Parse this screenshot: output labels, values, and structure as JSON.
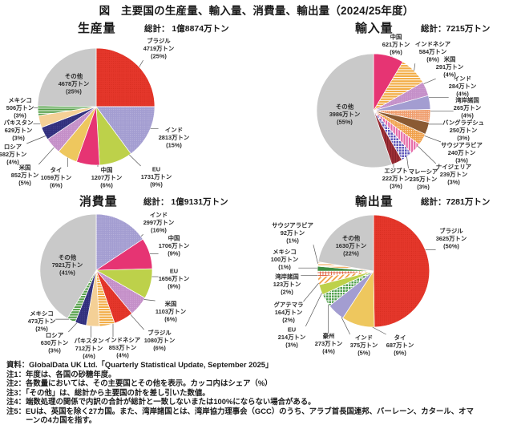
{
  "figure_title": "図　主要国の生産量、輸入量、消費量、輸出量（2024/25年度）",
  "chart_data": [
    {
      "type": "pie",
      "id": "production",
      "title": "生産量",
      "total_label": "総計： 1億8874万トン",
      "unit": "万トン",
      "total_value": 18874,
      "slices": [
        {
          "label": "ブラジル",
          "value": 4719,
          "value_label": "4719万トン",
          "share_label": "(25%)",
          "fill": {
            "pattern": "dots",
            "bg": "#e5372b",
            "fg": "#d32a1c"
          }
        },
        {
          "label": "インド",
          "value": 2813,
          "value_label": "2813万トン",
          "share_label": "(15%)",
          "fill": {
            "pattern": "dots",
            "bg": "#a39dd1",
            "fg": "#bfb9e0"
          }
        },
        {
          "label": "EU",
          "value": 1731,
          "value_label": "1731万トン",
          "share_label": "(9%)",
          "fill": {
            "pattern": "solid",
            "bg": "#bdd14a"
          }
        },
        {
          "label": "中国",
          "value": 1207,
          "value_label": "1207万トン",
          "share_label": "(6%)",
          "fill": {
            "pattern": "solid",
            "bg": "#e63473"
          }
        },
        {
          "label": "タイ",
          "value": 1059,
          "value_label": "1059万トン",
          "share_label": "(6%)",
          "fill": {
            "pattern": "solid",
            "bg": "#eec75e"
          }
        },
        {
          "label": "米国",
          "value": 852,
          "value_label": "852万トン",
          "share_label": "(5%)",
          "fill": {
            "pattern": "dots",
            "bg": "#c48fc8",
            "fg": "#d9aedb"
          }
        },
        {
          "label": "ロシア",
          "value": 682,
          "value_label": "682万トン",
          "share_label": "(4%)",
          "fill": {
            "pattern": "dots",
            "bg": "#312f7c",
            "fg": "#504e9d"
          }
        },
        {
          "label": "パキスタン",
          "value": 629,
          "value_label": "629万トン",
          "share_label": "(3%)",
          "fill": {
            "pattern": "solid",
            "bg": "#f4d096"
          }
        },
        {
          "label": "メキシコ",
          "value": 506,
          "value_label": "506万トン",
          "share_label": "(3%)",
          "fill": {
            "pattern": "hstripes",
            "bg": "#54a049",
            "fg": "#ffffff"
          }
        },
        {
          "label": "その他",
          "value": 4678,
          "value_label": "4678万トン",
          "share_label": "(25%)",
          "fill": {
            "pattern": "solid",
            "bg": "#c9c9c9"
          },
          "inside": true
        }
      ]
    },
    {
      "type": "pie",
      "id": "imports",
      "title": "輸入量",
      "total_label": "総計：7215万トン",
      "unit": "万トン",
      "total_value": 7215,
      "slices": [
        {
          "label": "中国",
          "value": 621,
          "value_label": "621万トン",
          "share_label": "(9%)",
          "fill": {
            "pattern": "solid",
            "bg": "#e63473"
          }
        },
        {
          "label": "インドネシア",
          "value": 584,
          "value_label": "584万トン",
          "share_label": "(8%)",
          "fill": {
            "pattern": "hstripes",
            "bg": "#f2ab43",
            "fg": "#ffffff"
          }
        },
        {
          "label": "米国",
          "value": 291,
          "value_label": "291万トン",
          "share_label": "(4%)",
          "fill": {
            "pattern": "dots",
            "bg": "#c48fc8",
            "fg": "#d9aedb"
          }
        },
        {
          "label": "インド",
          "value": 284,
          "value_label": "284万トン",
          "share_label": "(4%)",
          "fill": {
            "pattern": "solid",
            "bg": "#a39dd1"
          }
        },
        {
          "label": "湾岸諸国",
          "value": 265,
          "value_label": "265万トン",
          "share_label": "(4%)",
          "fill": {
            "pattern": "dots",
            "bg": "#ef9d6d",
            "fg": "#ffffff"
          }
        },
        {
          "label": "バングラデシュ",
          "value": 250,
          "value_label": "250万トン",
          "share_label": "(3%)",
          "fill": {
            "pattern": "solid",
            "bg": "#8a5a33"
          }
        },
        {
          "label": "サウジアラビア",
          "value": 240,
          "value_label": "240万トン",
          "share_label": "(3%)",
          "fill": {
            "pattern": "dots",
            "bg": "#f0a04a",
            "fg": "#ffffff"
          }
        },
        {
          "label": "ナイジェリア",
          "value": 239,
          "value_label": "239万トン",
          "share_label": "(3%)",
          "fill": {
            "pattern": "vstripes",
            "bg": "#e668a6",
            "fg": "#ffffff"
          }
        },
        {
          "label": "マレーシア",
          "value": 235,
          "value_label": "235万トン",
          "share_label": "(3%)",
          "fill": {
            "pattern": "grid",
            "bg": "#5d55b8",
            "fg": "#ffffff"
          }
        },
        {
          "label": "エジプト",
          "value": 222,
          "value_label": "222万トン",
          "share_label": "(3%)",
          "fill": {
            "pattern": "vstripes",
            "bg": "#a03038",
            "fg": "#7c1f27"
          }
        },
        {
          "label": "その他",
          "value": 3986,
          "value_label": "3986万トン",
          "share_label": "(55%)",
          "fill": {
            "pattern": "solid",
            "bg": "#c9c9c9"
          },
          "inside": true
        }
      ]
    },
    {
      "type": "pie",
      "id": "consumption",
      "title": "消費量",
      "total_label": "総計： 1億9131万トン",
      "unit": "万トン",
      "total_value": 19131,
      "slices": [
        {
          "label": "インド",
          "value": 2997,
          "value_label": "2997万トン",
          "share_label": "(16%)",
          "fill": {
            "pattern": "dots",
            "bg": "#a39dd1",
            "fg": "#bfb9e0"
          }
        },
        {
          "label": "中国",
          "value": 1706,
          "value_label": "1706万トン",
          "share_label": "(9%)",
          "fill": {
            "pattern": "solid",
            "bg": "#e63473"
          }
        },
        {
          "label": "EU",
          "value": 1656,
          "value_label": "1656万トン",
          "share_label": "(9%)",
          "fill": {
            "pattern": "solid",
            "bg": "#bdd14a"
          }
        },
        {
          "label": "米国",
          "value": 1103,
          "value_label": "1103万トン",
          "share_label": "(6%)",
          "fill": {
            "pattern": "dots",
            "bg": "#c48fc8",
            "fg": "#d9aedb"
          }
        },
        {
          "label": "ブラジル",
          "value": 1080,
          "value_label": "1080万トン",
          "share_label": "(6%)",
          "fill": {
            "pattern": "dots",
            "bg": "#e5372b",
            "fg": "#d32a1c"
          }
        },
        {
          "label": "インドネシア",
          "value": 853,
          "value_label": "853万トン",
          "share_label": "(4%)",
          "fill": {
            "pattern": "hstripes",
            "bg": "#f2ab43",
            "fg": "#ffffff"
          }
        },
        {
          "label": "パキスタン",
          "value": 712,
          "value_label": "712万トン",
          "share_label": "(4%)",
          "fill": {
            "pattern": "solid",
            "bg": "#f4d096"
          }
        },
        {
          "label": "ロシア",
          "value": 630,
          "value_label": "630万トン",
          "share_label": "(3%)",
          "fill": {
            "pattern": "dots",
            "bg": "#312f7c",
            "fg": "#504e9d"
          }
        },
        {
          "label": "メキシコ",
          "value": 473,
          "value_label": "473万トン",
          "share_label": "(2%)",
          "fill": {
            "pattern": "hstripes",
            "bg": "#54a049",
            "fg": "#ffffff"
          }
        },
        {
          "label": "その他",
          "value": 7921,
          "value_label": "7921万トン",
          "share_label": "(41%)",
          "fill": {
            "pattern": "solid",
            "bg": "#c9c9c9"
          },
          "inside": true
        }
      ]
    },
    {
      "type": "pie",
      "id": "exports",
      "title": "輸出量",
      "total_label": "総計：7281万トン",
      "unit": "万トン",
      "total_value": 7281,
      "slices": [
        {
          "label": "ブラジル",
          "value": 3625,
          "value_label": "3625万トン",
          "share_label": "(50%)",
          "fill": {
            "pattern": "dots",
            "bg": "#e5372b",
            "fg": "#d32a1c"
          }
        },
        {
          "label": "タイ",
          "value": 687,
          "value_label": "687万トン",
          "share_label": "(9%)",
          "fill": {
            "pattern": "solid",
            "bg": "#eec75e"
          }
        },
        {
          "label": "インド",
          "value": 375,
          "value_label": "375万トン",
          "share_label": "(5%)",
          "fill": {
            "pattern": "solid",
            "bg": "#a39dd1"
          }
        },
        {
          "label": "豪州",
          "value": 273,
          "value_label": "273万トン",
          "share_label": "(4%)",
          "fill": {
            "pattern": "grid",
            "bg": "#52a04e",
            "fg": "#ffffff"
          }
        },
        {
          "label": "EU",
          "value": 214,
          "value_label": "214万トン",
          "share_label": "(3%)",
          "fill": {
            "pattern": "solid",
            "bg": "#bdd14a"
          }
        },
        {
          "label": "グアテマラ",
          "value": 164,
          "value_label": "164万トン",
          "share_label": "(2%)",
          "fill": {
            "pattern": "diag",
            "bg": "#ffffff",
            "fg": "#f09a3e"
          }
        },
        {
          "label": "湾岸諸国",
          "value": 123,
          "value_label": "123万トン",
          "share_label": "(2%)",
          "fill": {
            "pattern": "grid",
            "bg": "#ffffff",
            "fg": "#dd5b38"
          }
        },
        {
          "label": "メキシコ",
          "value": 100,
          "value_label": "100万トン",
          "share_label": "(1%)",
          "fill": {
            "pattern": "solid",
            "bg": "#3e8e41"
          }
        },
        {
          "label": "サウジアラビア",
          "value": 92,
          "value_label": "92万トン",
          "share_label": "(1%)",
          "fill": {
            "pattern": "hstripes",
            "bg": "#ffffff",
            "fg": "#f09a3e"
          }
        },
        {
          "label": "その他",
          "value": 1630,
          "value_label": "1630万トン",
          "share_label": "(22%)",
          "fill": {
            "pattern": "solid",
            "bg": "#c9c9c9"
          },
          "inside": true
        }
      ]
    }
  ],
  "notes": [
    "資料：GlobalData UK Ltd.「Quarterly Statistical Update, September 2025」",
    "注1：年度は、各国の砂糖年度。",
    "注2：各数量においては、その主要国とその他を表示。カッコ内はシェア（%）",
    "注3：「その他」は、総計から主要国の計を差し引いた数値。",
    "注4：端数処理の関係で内訳の合計が総計と一致しないまたは100%にならない場合がある。",
    "注5：EUは、英国を除く27カ国。また、湾岸諸国とは、湾岸協力理事会（GCC）のうち、アラブ首長国連邦、バーレーン、カタール、オマーンの4カ国を指す。"
  ]
}
